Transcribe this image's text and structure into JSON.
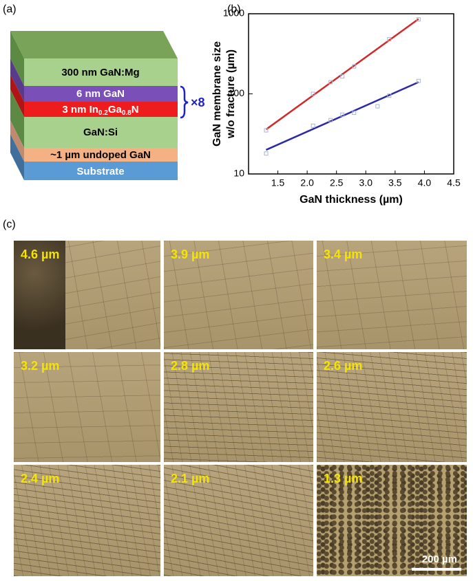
{
  "panel_a": {
    "label": "(a)",
    "layers": [
      "300 nm GaN:Mg",
      "6 nm GaN",
      {
        "prefix": "3 nm In",
        "sub1": "0.2",
        "mid": "Ga",
        "sub2": "0.8",
        "suffix": "N"
      },
      "GaN:Si",
      "~1 µm undoped GaN",
      "Substrate"
    ],
    "repeat": "×8"
  },
  "chart_data": {
    "type": "scatter",
    "label": "(b)",
    "ylabel": [
      "GaN membrane size",
      "w/o fracture (µm)"
    ],
    "xlabel": "GaN thickness (µm)",
    "xlim": [
      1.0,
      4.5
    ],
    "ylim": [
      10,
      1000
    ],
    "log_y": true,
    "xticks": [
      1.5,
      {
        "value": 2,
        "label": "2.0"
      },
      2.5,
      {
        "value": 3,
        "label": "3.0"
      },
      3.5,
      {
        "value": 4,
        "label": "4.0"
      },
      4.5
    ],
    "yticks": [
      10,
      100,
      1000
    ],
    "marker_color": "#a8b4d0",
    "series": [
      {
        "color": "#d22a2a",
        "x": [
          1.3,
          2.1,
          2.4,
          2.6,
          2.8,
          3.4,
          3.9
        ],
        "values": [
          35,
          100,
          140,
          165,
          220,
          480,
          850
        ],
        "fit_x": [
          1.3,
          3.9
        ],
        "fit_values": [
          36,
          860
        ]
      },
      {
        "color": "#2a2aa8",
        "x": [
          1.3,
          2.1,
          2.4,
          2.6,
          2.8,
          3.2,
          3.4,
          3.9
        ],
        "values": [
          18,
          40,
          47,
          55,
          58,
          70,
          95,
          145
        ],
        "fit_x": [
          1.3,
          3.9
        ],
        "fit_values": [
          20,
          140
        ]
      }
    ]
  },
  "panel_c": {
    "label": "(c)",
    "images": [
      "4.6 µm",
      "3.9 µm",
      "3.4 µm",
      "3.2 µm",
      "2.8 µm",
      "2.6 µm",
      "2.4 µm",
      "2.1 µm",
      "1.3 µm"
    ],
    "scale_bar": "200 µm"
  }
}
